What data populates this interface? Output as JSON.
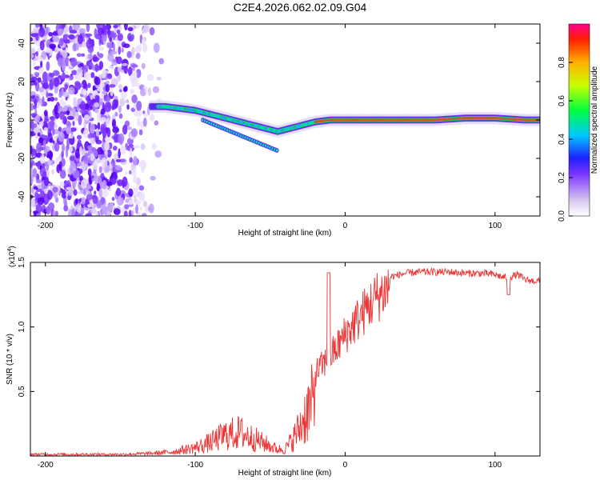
{
  "title": "C2E4.2026.062.02.09.G04",
  "chart_data": [
    {
      "type": "heatmap",
      "name": "spectrogram",
      "xlabel": "Height of straight line (km)",
      "ylabel": "Frequency (Hz)",
      "xlim": [
        -210,
        130
      ],
      "ylim": [
        -50,
        50
      ],
      "xticks": [
        -200,
        -100,
        0,
        100
      ],
      "yticks": [
        -40,
        -20,
        0,
        20,
        40
      ],
      "colorbar": {
        "label": "Normalized spectral amplitude",
        "range": [
          0,
          1
        ],
        "ticks": [
          0.0,
          0.2,
          0.4,
          0.6,
          0.8
        ]
      },
      "ridge": {
        "x": [
          -130,
          -120,
          -110,
          -100,
          -90,
          -80,
          -70,
          -60,
          -50,
          -45,
          -40,
          -30,
          -20,
          -10,
          0,
          20,
          40,
          60,
          80,
          100,
          120,
          130
        ],
        "y": [
          7,
          7,
          6,
          5,
          3,
          1,
          -1,
          -3,
          -5,
          -6,
          -5,
          -3,
          -1,
          0,
          0,
          0,
          0,
          0,
          1,
          1,
          0,
          0
        ]
      },
      "noise_region_x": [
        -210,
        -120
      ]
    },
    {
      "type": "line",
      "name": "snr",
      "xlabel": "Height of straight line (km)",
      "ylabel": "SNR (10 * v/v)",
      "y_multiplier": "(x10",
      "y_multiplier_exp": "4",
      "xlim": [
        -210,
        130
      ],
      "ylim": [
        0,
        1.5
      ],
      "xticks": [
        -200,
        -100,
        0,
        100
      ],
      "yticks": [
        0.5,
        1.0,
        1.5
      ],
      "series": [
        {
          "name": "SNR",
          "color": "#ee3333",
          "envelope_x": [
            -210,
            -180,
            -150,
            -130,
            -115,
            -100,
            -90,
            -80,
            -70,
            -60,
            -50,
            -45,
            -40,
            -35,
            -30,
            -25,
            -20,
            -15,
            -10,
            -5,
            0,
            10,
            20,
            30,
            40,
            50,
            60,
            70,
            80,
            90,
            100,
            105,
            110,
            115,
            120,
            125,
            130
          ],
          "envelope_y": [
            0.02,
            0.02,
            0.02,
            0.03,
            0.05,
            0.1,
            0.16,
            0.25,
            0.28,
            0.2,
            0.12,
            0.08,
            0.08,
            0.2,
            0.35,
            0.55,
            0.68,
            0.75,
            0.82,
            0.9,
            1.0,
            1.15,
            1.3,
            1.4,
            1.43,
            1.44,
            1.44,
            1.44,
            1.43,
            1.43,
            1.42,
            1.4,
            1.4,
            1.42,
            1.38,
            1.37,
            1.37
          ]
        }
      ]
    }
  ]
}
